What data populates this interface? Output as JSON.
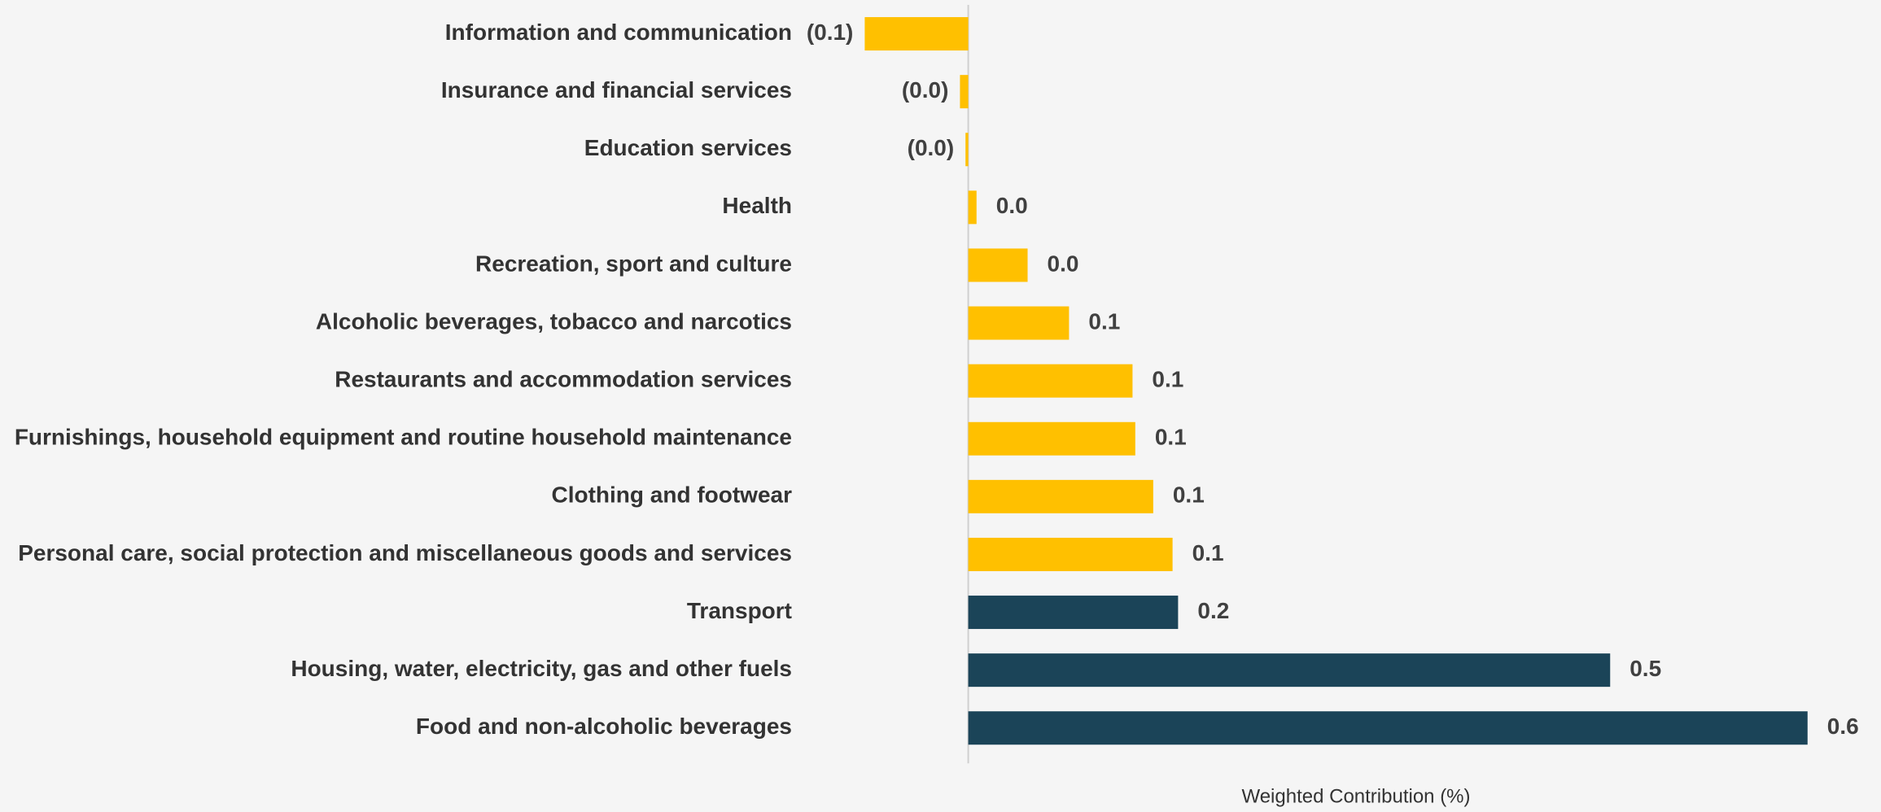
{
  "chart_data": {
    "type": "barh",
    "categories": [
      "Information and communication",
      "Insurance and financial services",
      "Education services",
      "Health",
      "Recreation, sport and culture",
      "Alcoholic beverages, tobacco and narcotics",
      "Restaurants and accommodation services",
      "Furnishings, household equipment and routine household maintenance",
      "Clothing and footwear",
      "Personal care, social protection and miscellaneous goods and services",
      "Transport",
      "Housing, water, electricity, gas and other fuels",
      "Food and non-alcoholic beverages"
    ],
    "values": [
      -0.075,
      -0.006,
      -0.002,
      0.006,
      0.043,
      0.073,
      0.119,
      0.121,
      0.134,
      0.148,
      0.152,
      0.465,
      0.608
    ],
    "value_labels": [
      "(0.1)",
      "(0.0)",
      "(0.0)",
      "0.0",
      "0.0",
      "0.1",
      "0.1",
      "0.1",
      "0.1",
      "0.1",
      "0.2",
      "0.5",
      "0.6"
    ],
    "colors": [
      "#FFC000",
      "#FFC000",
      "#FFC000",
      "#FFC000",
      "#FFC000",
      "#FFC000",
      "#FFC000",
      "#FFC000",
      "#FFC000",
      "#FFC000",
      "#1B4458",
      "#1B4458",
      "#1B4458"
    ],
    "xlabel": "Weighted Contribution  (%)",
    "xlim": [
      -0.1,
      0.65
    ]
  }
}
